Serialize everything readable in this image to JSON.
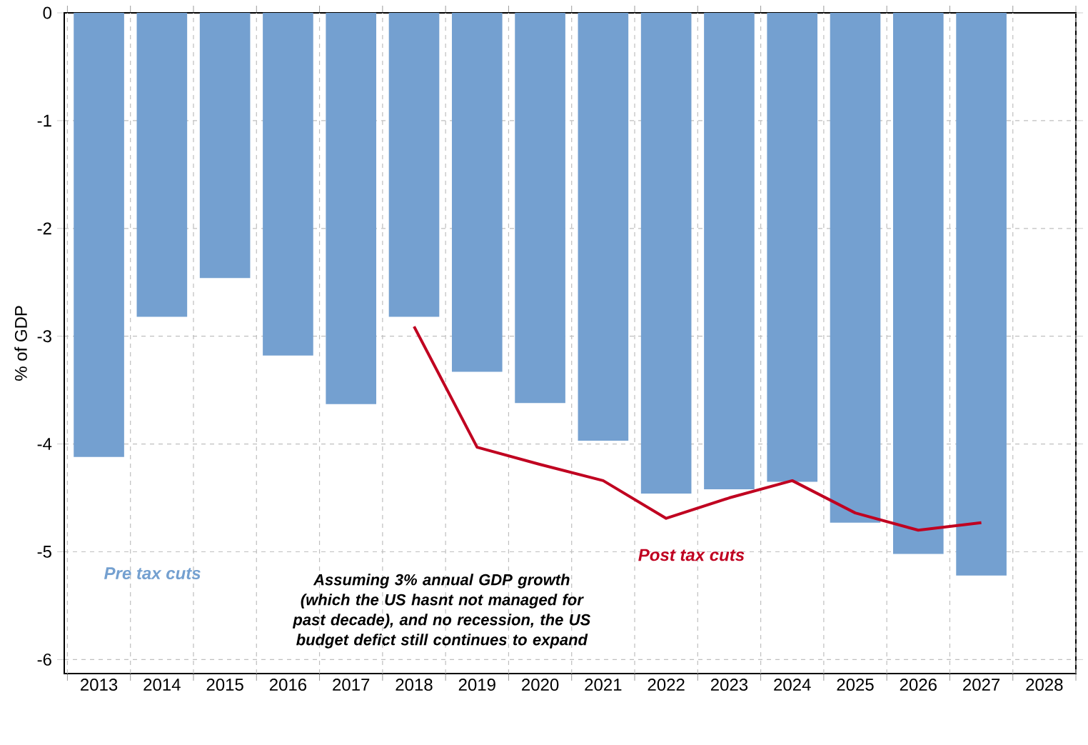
{
  "chart_data": {
    "type": "bar",
    "ylabel": "% of GDP",
    "categories": [
      "2013",
      "2014",
      "2015",
      "2016",
      "2017",
      "2018",
      "2019",
      "2020",
      "2021",
      "2022",
      "2023",
      "2024",
      "2025",
      "2026",
      "2027",
      "2028"
    ],
    "series": [
      {
        "name": "Pre tax cuts",
        "color": "#74a0d0",
        "values": [
          -4.12,
          -2.82,
          -2.46,
          -3.18,
          -3.63,
          -2.82,
          -3.33,
          -3.62,
          -3.97,
          -4.46,
          -4.42,
          -4.35,
          -4.73,
          -5.02,
          -5.22,
          null
        ]
      },
      {
        "name": "Post tax cuts",
        "type": "line",
        "color": "#c00020",
        "values": [
          null,
          null,
          null,
          null,
          null,
          -2.91,
          -4.03,
          -4.19,
          -4.34,
          -4.69,
          -4.5,
          -4.34,
          -4.64,
          -4.8,
          -4.73,
          null
        ]
      }
    ],
    "ylim": [
      -6.13,
      0
    ],
    "yticks": [
      0,
      -1,
      -2,
      -3,
      -4,
      -5,
      -6
    ],
    "grid": true,
    "annotations": [
      "Assuming 3% annual GDP growth (which the US hasnt not managed for past decade), and no recession, the US budget defict still continues to expand"
    ]
  }
}
